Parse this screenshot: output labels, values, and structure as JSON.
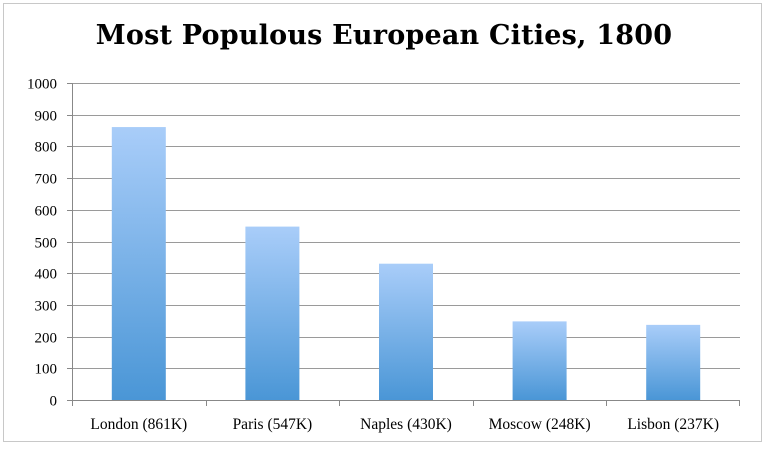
{
  "chart_data": {
    "type": "bar",
    "title": "Most Populous European Cities, 1800",
    "categories": [
      "London (861K)",
      "Paris (547K)",
      "Naples (430K)",
      "Moscow (248K)",
      "Lisbon (237K)"
    ],
    "values": [
      861,
      547,
      430,
      248,
      237
    ],
    "ylim": [
      0,
      1000
    ],
    "yticks": [
      0,
      100,
      200,
      300,
      400,
      500,
      600,
      700,
      800,
      900,
      1000
    ],
    "grid": true,
    "legend": "none",
    "bar_color_top": "#a9cdf9",
    "bar_color_bottom": "#4a96d6",
    "grid_color": "#9a9a9a"
  }
}
